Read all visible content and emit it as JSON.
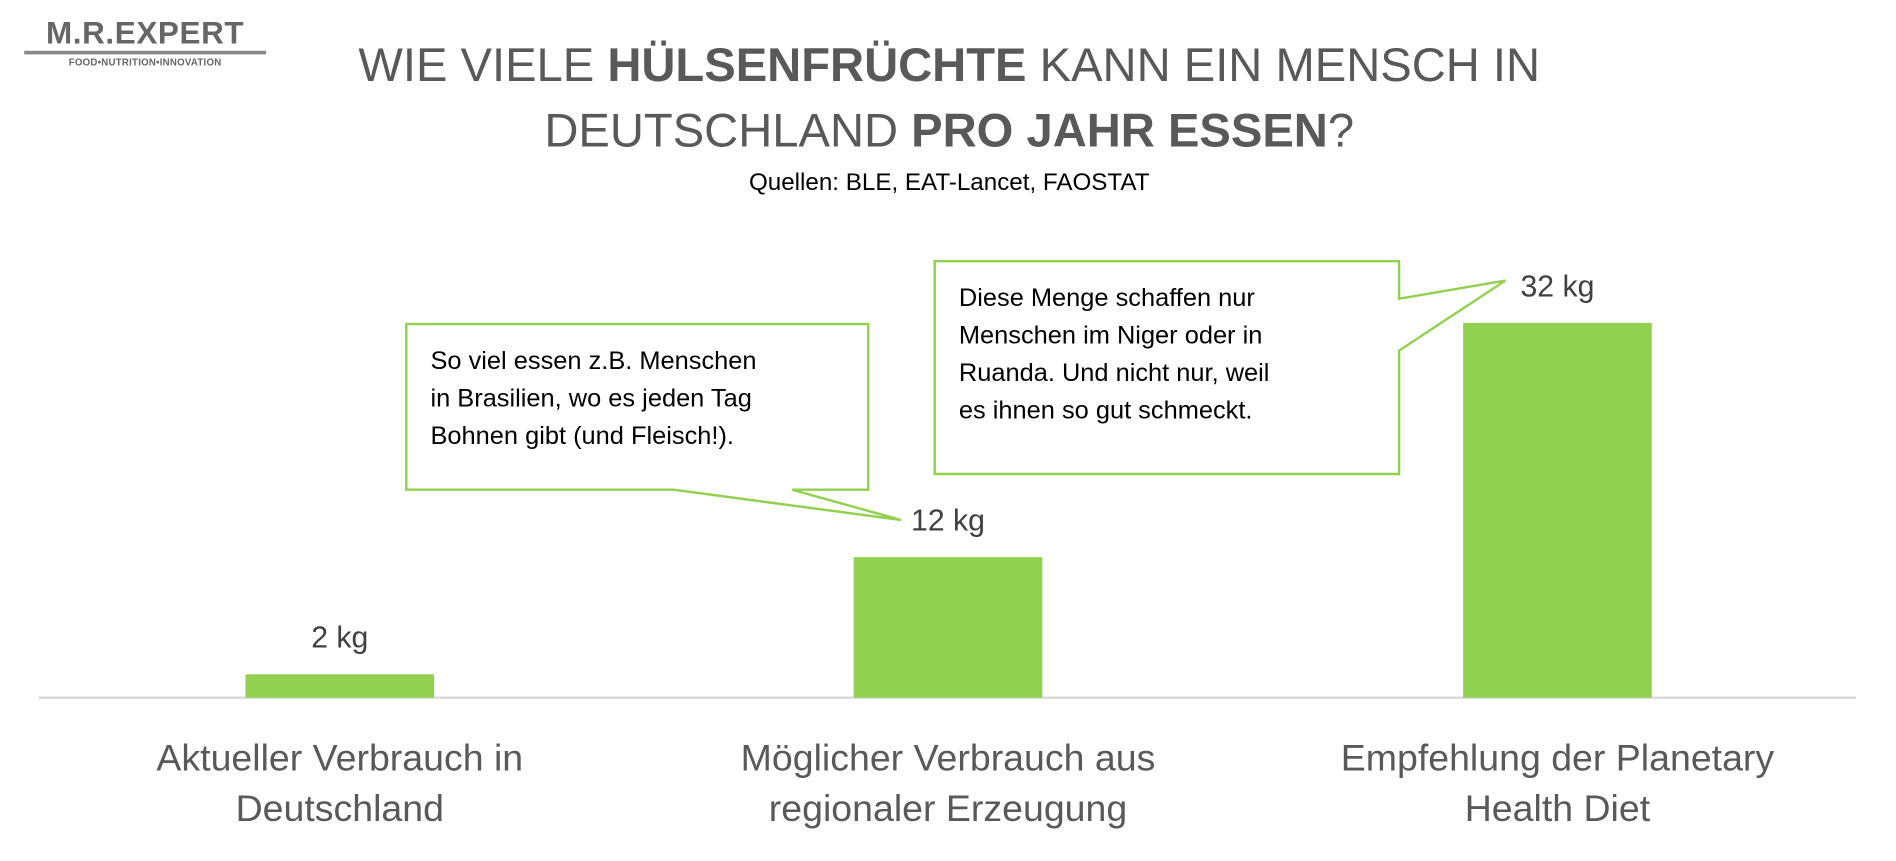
{
  "logo": {
    "name": "M.R.EXPERT",
    "tagline": "FOOD•NUTRITION•INNOVATION"
  },
  "title": {
    "part1": "WIE VIELE ",
    "bold1": "HÜLSENFRÜCHTE",
    "part2": " KANN EIN MENSCH IN DEUTSCHLAND ",
    "bold2": "PRO JAHR ESSEN",
    "part3": "?"
  },
  "sources": "Quellen: BLE, EAT-Lancet, FAOSTAT",
  "colors": {
    "bar": "#92D050",
    "callout_border": "#92D050",
    "text": "#595959"
  },
  "chart_data": {
    "type": "bar",
    "categories": [
      "Aktueller Verbrauch in Deutschland",
      "Möglicher Verbrauch aus regionaler Erzeugung",
      "Empfehlung der Planetary Health Diet"
    ],
    "category_lines": [
      [
        "Aktueller Verbrauch in",
        "Deutschland"
      ],
      [
        "Möglicher Verbrauch aus",
        "regionaler Erzeugung"
      ],
      [
        "Empfehlung der Planetary",
        "Health Diet"
      ]
    ],
    "values": [
      2,
      12,
      32
    ],
    "data_labels": [
      "2 kg",
      "12 kg",
      "32 kg"
    ],
    "unit": "kg",
    "ylim": [
      0,
      32
    ],
    "grid": false,
    "annotations": [
      {
        "target": 1,
        "text": "So viel essen z.B. Menschen in Brasilien, wo es jeden Tag Bohnen gibt (und Fleisch!).",
        "lines": [
          "So viel essen z.B. Menschen",
          "in Brasilien, wo es jeden Tag",
          "Bohnen gibt (und Fleisch!)."
        ]
      },
      {
        "target": 2,
        "text": "Diese Menge schaffen nur Menschen im Niger oder in Ruanda. Und nicht nur, weil es ihnen so gut schmeckt.",
        "lines": [
          "Diese Menge schaffen nur",
          "Menschen im Niger oder in",
          "Ruanda. Und nicht nur, weil",
          "es ihnen so gut schmeckt."
        ]
      }
    ]
  }
}
